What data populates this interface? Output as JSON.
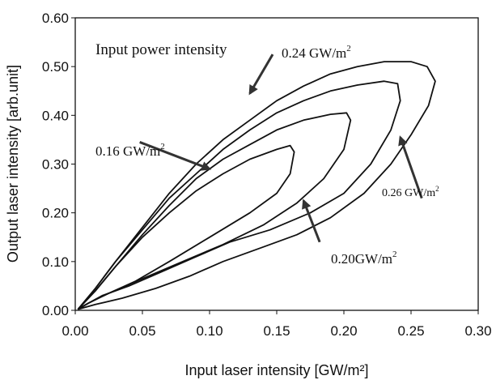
{
  "chart_data": {
    "type": "line",
    "title": "",
    "xlabel": "Input laser intensity [GW/m²]",
    "ylabel": "Output laser intensity [arb.unit]",
    "xlim": [
      0,
      0.3
    ],
    "ylim": [
      0,
      0.6
    ],
    "x_ticks": [
      "0.00",
      "0.05",
      "0.10",
      "0.15",
      "0.20",
      "0.25",
      "0.30"
    ],
    "y_ticks": [
      "0.00",
      "0.10",
      "0.20",
      "0.30",
      "0.40",
      "0.50",
      "0.60"
    ],
    "grid": false,
    "annotation_header": "Input power intensity",
    "series": [
      {
        "name": "0.16 GW/m²",
        "label": "0.16 GW/m",
        "points": [
          [
            0.002,
            0.002
          ],
          [
            0.015,
            0.04
          ],
          [
            0.03,
            0.09
          ],
          [
            0.05,
            0.15
          ],
          [
            0.07,
            0.2
          ],
          [
            0.09,
            0.245
          ],
          [
            0.11,
            0.28
          ],
          [
            0.13,
            0.31
          ],
          [
            0.15,
            0.33
          ],
          [
            0.16,
            0.338
          ],
          [
            0.163,
            0.325
          ],
          [
            0.16,
            0.28
          ],
          [
            0.15,
            0.24
          ],
          [
            0.13,
            0.2
          ],
          [
            0.1,
            0.15
          ],
          [
            0.07,
            0.1
          ],
          [
            0.045,
            0.06
          ],
          [
            0.025,
            0.035
          ],
          [
            0.01,
            0.015
          ],
          [
            0.002,
            0.002
          ]
        ]
      },
      {
        "name": "0.20 GW/m²",
        "label": "0.20GW/m",
        "points": [
          [
            0.002,
            0.002
          ],
          [
            0.015,
            0.04
          ],
          [
            0.03,
            0.09
          ],
          [
            0.05,
            0.155
          ],
          [
            0.07,
            0.215
          ],
          [
            0.09,
            0.27
          ],
          [
            0.11,
            0.31
          ],
          [
            0.13,
            0.34
          ],
          [
            0.15,
            0.37
          ],
          [
            0.17,
            0.39
          ],
          [
            0.19,
            0.402
          ],
          [
            0.202,
            0.405
          ],
          [
            0.205,
            0.39
          ],
          [
            0.2,
            0.33
          ],
          [
            0.185,
            0.27
          ],
          [
            0.165,
            0.22
          ],
          [
            0.14,
            0.175
          ],
          [
            0.11,
            0.135
          ],
          [
            0.08,
            0.1
          ],
          [
            0.05,
            0.065
          ],
          [
            0.025,
            0.035
          ],
          [
            0.01,
            0.015
          ],
          [
            0.002,
            0.002
          ]
        ]
      },
      {
        "name": "0.24 GW/m²",
        "label": "0.24 GW/m",
        "points": [
          [
            0.002,
            0.002
          ],
          [
            0.015,
            0.045
          ],
          [
            0.03,
            0.1
          ],
          [
            0.05,
            0.165
          ],
          [
            0.07,
            0.23
          ],
          [
            0.09,
            0.28
          ],
          [
            0.11,
            0.33
          ],
          [
            0.13,
            0.37
          ],
          [
            0.15,
            0.405
          ],
          [
            0.17,
            0.43
          ],
          [
            0.19,
            0.45
          ],
          [
            0.21,
            0.462
          ],
          [
            0.23,
            0.47
          ],
          [
            0.24,
            0.465
          ],
          [
            0.242,
            0.43
          ],
          [
            0.235,
            0.37
          ],
          [
            0.22,
            0.3
          ],
          [
            0.2,
            0.24
          ],
          [
            0.175,
            0.2
          ],
          [
            0.145,
            0.165
          ],
          [
            0.115,
            0.14
          ],
          [
            0.09,
            0.11
          ],
          [
            0.065,
            0.08
          ],
          [
            0.04,
            0.05
          ],
          [
            0.02,
            0.03
          ],
          [
            0.008,
            0.012
          ],
          [
            0.002,
            0.002
          ]
        ]
      },
      {
        "name": "0.26 GW/m²",
        "label": "0.26 GW/m",
        "points": [
          [
            0.002,
            0.002
          ],
          [
            0.015,
            0.045
          ],
          [
            0.03,
            0.1
          ],
          [
            0.05,
            0.17
          ],
          [
            0.07,
            0.24
          ],
          [
            0.09,
            0.3
          ],
          [
            0.11,
            0.35
          ],
          [
            0.13,
            0.39
          ],
          [
            0.15,
            0.43
          ],
          [
            0.17,
            0.46
          ],
          [
            0.19,
            0.485
          ],
          [
            0.21,
            0.5
          ],
          [
            0.23,
            0.51
          ],
          [
            0.25,
            0.51
          ],
          [
            0.262,
            0.5
          ],
          [
            0.268,
            0.47
          ],
          [
            0.263,
            0.42
          ],
          [
            0.25,
            0.36
          ],
          [
            0.235,
            0.3
          ],
          [
            0.215,
            0.24
          ],
          [
            0.19,
            0.19
          ],
          [
            0.165,
            0.155
          ],
          [
            0.14,
            0.13
          ],
          [
            0.11,
            0.1
          ],
          [
            0.085,
            0.07
          ],
          [
            0.06,
            0.045
          ],
          [
            0.035,
            0.025
          ],
          [
            0.015,
            0.012
          ],
          [
            0.002,
            0.002
          ]
        ]
      }
    ],
    "arrows": [
      {
        "label": "0.24 GW/m²",
        "from": [
          0.147,
          0.525
        ],
        "to": [
          0.13,
          0.445
        ]
      },
      {
        "label": "0.16 GW/m²",
        "from": [
          0.048,
          0.345
        ],
        "to": [
          0.1,
          0.29
        ]
      },
      {
        "label": "0.20 GW/m²",
        "from": [
          0.182,
          0.14
        ],
        "to": [
          0.17,
          0.225
        ]
      },
      {
        "label": "0.26 GW/m²",
        "from": [
          0.258,
          0.23
        ],
        "to": [
          0.242,
          0.355
        ]
      }
    ]
  }
}
